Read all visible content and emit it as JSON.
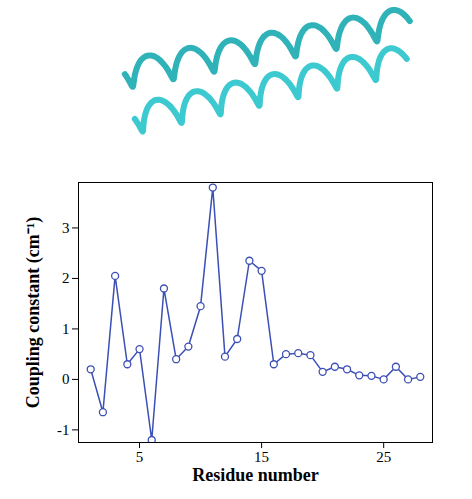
{
  "chart_data": {
    "type": "line",
    "xlabel": "Residue number",
    "ylabel": "Coupling constant (cm⁻¹)",
    "x": [
      1,
      2,
      3,
      4,
      5,
      6,
      7,
      8,
      9,
      10,
      11,
      12,
      13,
      14,
      15,
      16,
      17,
      18,
      19,
      20,
      21,
      22,
      23,
      24,
      25,
      26,
      27,
      28
    ],
    "values": [
      0.2,
      -0.65,
      2.05,
      0.3,
      0.6,
      -1.2,
      1.8,
      0.4,
      0.65,
      1.45,
      3.8,
      0.45,
      0.8,
      2.35,
      2.15,
      0.3,
      0.5,
      0.52,
      0.48,
      0.15,
      0.25,
      0.2,
      0.08,
      0.07,
      0.0,
      0.25,
      0.0,
      0.05
    ],
    "color": "#3b4fb5",
    "marker": "circle",
    "line_style": "solid",
    "xlim": [
      0,
      29
    ],
    "ylim": [
      -1.25,
      3.9
    ],
    "xticks": [
      5,
      15,
      25
    ],
    "yticks": [
      -1,
      0,
      1,
      2,
      3
    ],
    "grid": false
  }
}
